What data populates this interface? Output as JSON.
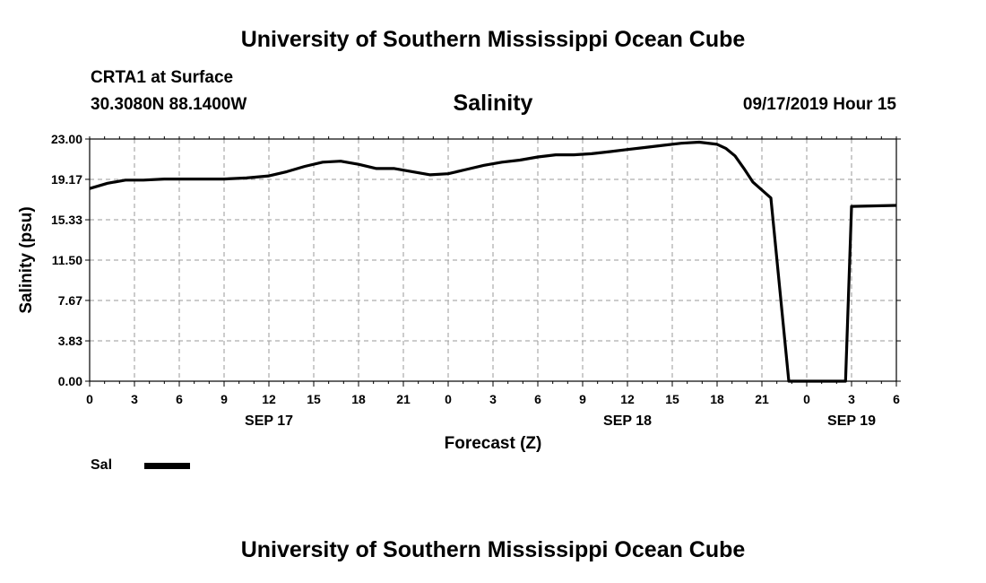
{
  "header": {
    "title": "University of Southern Mississippi Ocean Cube",
    "station": "CRTA1 at Surface",
    "coords": "30.3080N 88.1400W",
    "datetime": "09/17/2019 Hour 15"
  },
  "footer": {
    "title": "University of Southern Mississippi Ocean Cube"
  },
  "legend": {
    "label": "Sal"
  },
  "chart_data": {
    "type": "line",
    "title": "Salinity",
    "xlabel": "Forecast (Z)",
    "ylabel": "Salinity (psu)",
    "ylim": [
      0,
      23
    ],
    "xlim": [
      0,
      54
    ],
    "grid": true,
    "yticks": [
      0.0,
      3.83,
      7.67,
      11.5,
      15.33,
      19.17,
      23.0
    ],
    "ytick_labels": [
      "0.00",
      "3.83",
      "7.67",
      "11.50",
      "15.33",
      "19.17",
      "23.00"
    ],
    "xticks": [
      0,
      3,
      6,
      9,
      12,
      15,
      18,
      21,
      24,
      27,
      30,
      33,
      36,
      39,
      42,
      45,
      48,
      51,
      54
    ],
    "xtick_labels": [
      "0",
      "3",
      "6",
      "9",
      "12",
      "15",
      "18",
      "21",
      "0",
      "3",
      "6",
      "9",
      "12",
      "15",
      "18",
      "21",
      "0",
      "3",
      "6"
    ],
    "day_labels": [
      {
        "label": "SEP 17",
        "hour": 12
      },
      {
        "label": "SEP 18",
        "hour": 36
      },
      {
        "label": "SEP 19",
        "hour": 51
      }
    ],
    "series": [
      {
        "name": "Sal",
        "x": [
          0,
          1.2,
          2.4,
          3.6,
          5,
          7,
          9,
          10.5,
          12,
          13.2,
          14.4,
          15.6,
          16.8,
          18,
          19.2,
          20.4,
          21.6,
          22.8,
          24,
          25.2,
          26.4,
          27.6,
          28.8,
          30,
          31.2,
          32.4,
          33.6,
          34.8,
          36,
          37.2,
          38.4,
          39.6,
          40.8,
          42,
          42.6,
          43.2,
          43.8,
          44.4,
          45.6,
          46.8,
          48,
          49,
          50.6,
          51,
          54
        ],
        "values": [
          18.3,
          18.8,
          19.1,
          19.1,
          19.2,
          19.2,
          19.2,
          19.3,
          19.5,
          19.9,
          20.4,
          20.8,
          20.9,
          20.6,
          20.2,
          20.2,
          19.9,
          19.6,
          19.7,
          20.1,
          20.5,
          20.8,
          21.0,
          21.3,
          21.5,
          21.5,
          21.6,
          21.8,
          22.0,
          22.2,
          22.4,
          22.6,
          22.7,
          22.5,
          22.1,
          21.4,
          20.2,
          18.9,
          17.4,
          0.0,
          0.0,
          0.0,
          0.0,
          16.6,
          16.7
        ]
      }
    ]
  }
}
